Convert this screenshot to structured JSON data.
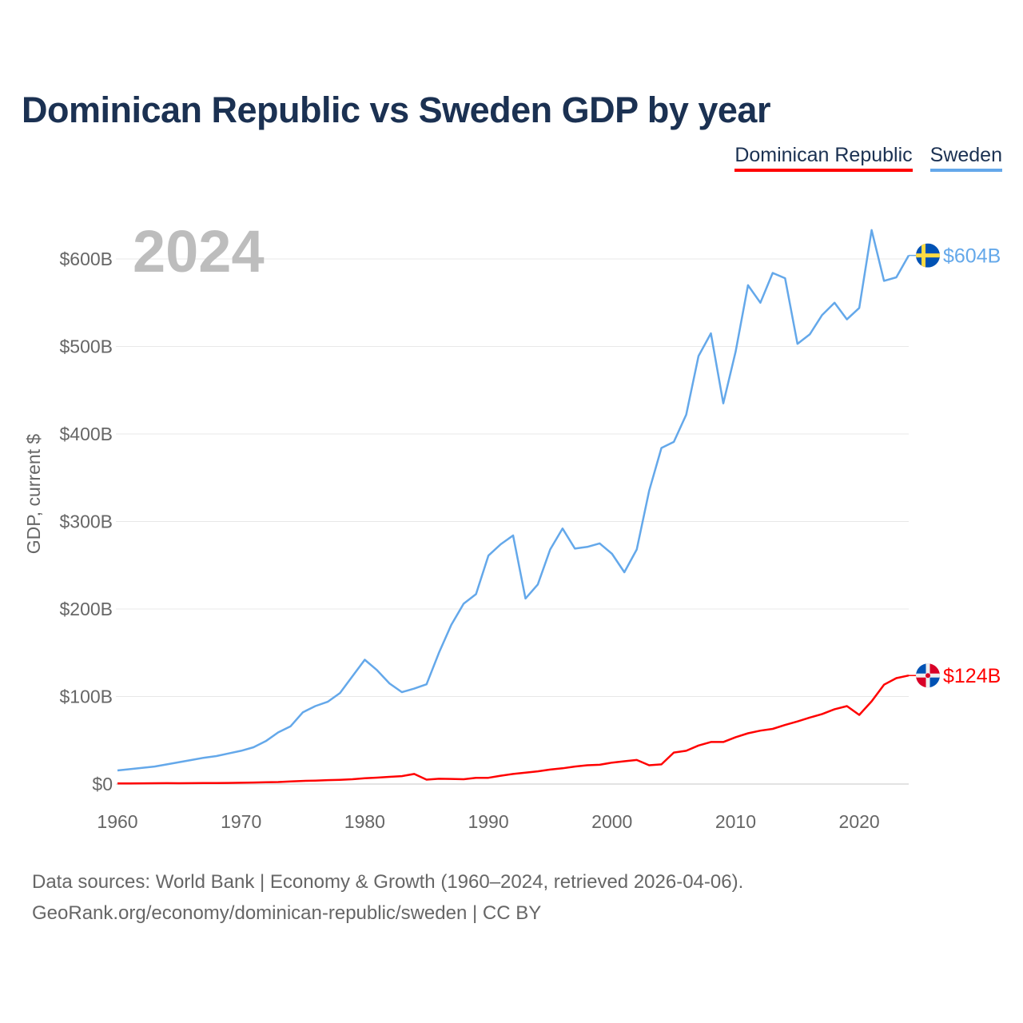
{
  "title": "Dominican Republic vs Sweden GDP by year",
  "legend": [
    "Dominican Republic",
    "Sweden"
  ],
  "year_label": "2024",
  "sources": {
    "line1": "Data sources: World Bank | Economy & Growth (1960–2024, retrieved 2026-04-06).",
    "line2": "GeoRank.org/economy/dominican-republic/sweden | CC BY"
  },
  "chart_data": {
    "type": "line",
    "title": "Dominican Republic vs Sweden GDP by year",
    "xlabel": "",
    "ylabel": "GDP, current $",
    "xlim": [
      1960,
      2024
    ],
    "ylim": [
      0,
      600
    ],
    "x_ticks": [
      1960,
      1970,
      1980,
      1990,
      2000,
      2010,
      2020
    ],
    "y_ticks": [
      0,
      100,
      200,
      300,
      400,
      500,
      600
    ],
    "y_tick_labels": [
      "$0",
      "$100B",
      "$200B",
      "$300B",
      "$400B",
      "$500B",
      "$600B"
    ],
    "grid": true,
    "legend_position": "top-right",
    "x_start": 1960,
    "series": [
      {
        "name": "Dominican Republic",
        "color": "#ff0000",
        "end_label": "$124B",
        "flag_icon": "dominican-republic-flag-icon",
        "values": [
          0.7,
          0.7,
          0.8,
          0.9,
          1.0,
          0.9,
          1.0,
          1.1,
          1.2,
          1.3,
          1.5,
          1.7,
          2.0,
          2.3,
          2.9,
          3.6,
          3.9,
          4.5,
          4.8,
          5.5,
          6.7,
          7.3,
          8.2,
          9.0,
          11.5,
          5.0,
          6.0,
          5.8,
          5.5,
          7.0,
          7.1,
          9.5,
          11.5,
          13.0,
          14.5,
          16.5,
          18.0,
          20.0,
          21.5,
          22.0,
          24.5,
          26.0,
          27.5,
          21.5,
          22.5,
          36.0,
          38.0,
          44.0,
          48.0,
          48.0,
          53.5,
          58.0,
          61.0,
          63.0,
          67.5,
          71.5,
          76.0,
          80.0,
          85.5,
          89.0,
          79.0,
          94.5,
          113.5,
          121.0,
          124.0
        ]
      },
      {
        "name": "Sweden",
        "color": "#64a8ea",
        "end_label": "$604B",
        "flag_icon": "sweden-flag-icon",
        "values": [
          15.5,
          17,
          18.5,
          20,
          22.5,
          25,
          27.5,
          30,
          32,
          35,
          38,
          42,
          49,
          59,
          66,
          82,
          89,
          94,
          104,
          123,
          142,
          130,
          115,
          105,
          109,
          114,
          150,
          182,
          206,
          217,
          261,
          274,
          284,
          212,
          228,
          268,
          292,
          269,
          271,
          275,
          263,
          242,
          268,
          335,
          384,
          391,
          422,
          489,
          515,
          435,
          494,
          570,
          550,
          584,
          578,
          503,
          514,
          536,
          550,
          531,
          544,
          633,
          575,
          579,
          604
        ]
      }
    ]
  }
}
